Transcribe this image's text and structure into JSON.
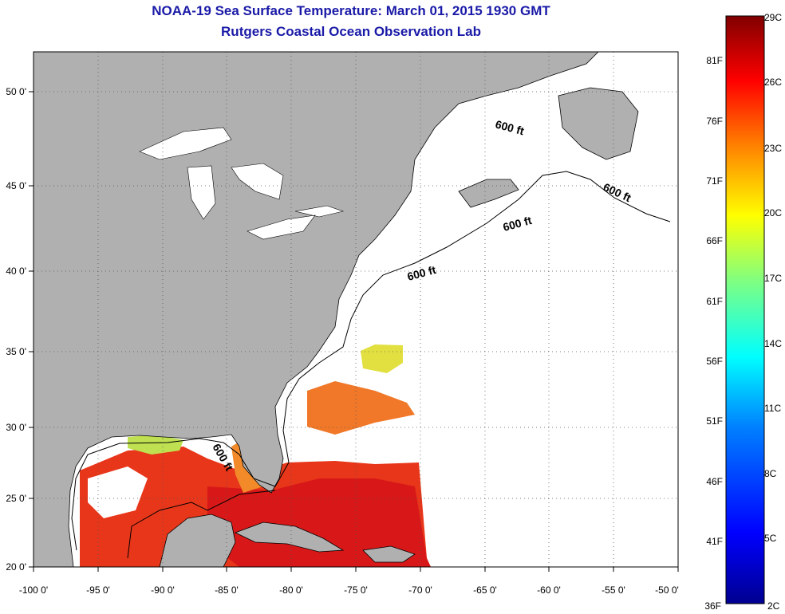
{
  "title": {
    "line1": "NOAA-19 Sea Surface Temperature:  March 01, 2015 1930 GMT",
    "line2": "Rutgers Coastal Ocean Observation Lab"
  },
  "map": {
    "lon_labels": [
      "-100 0'",
      "-95 0'",
      "-90 0'",
      "-85 0'",
      "-80 0'",
      "-75 0'",
      "-70 0'",
      "-65 0'",
      "-60 0'",
      "-55 0'",
      "-50 0'"
    ],
    "lat_labels": [
      "50 0'",
      "45 0'",
      "40 0'",
      "35 0'",
      "30 0'",
      "25 0'",
      "20 0'"
    ],
    "contour_labels": [
      "600 ft",
      "600 ft",
      "600 ft",
      "600 ft",
      "600 ft"
    ],
    "land_color": "#b0b0b0",
    "ocean_color": "#ffffff",
    "grid_style": "dotted"
  },
  "colorbar": {
    "celsius_labels": [
      "29C",
      "26C",
      "23C",
      "20C",
      "17C",
      "14C",
      "11C",
      "8C",
      "5C",
      "2C"
    ],
    "fahrenheit_labels": [
      "81F",
      "76F",
      "71F",
      "66F",
      "61F",
      "56F",
      "51F",
      "46F",
      "41F",
      "36F"
    ],
    "colors": [
      "#000090",
      "#0000ff",
      "#0080ff",
      "#00ffff",
      "#80ff80",
      "#ffff00",
      "#ff8000",
      "#ff0000",
      "#800000"
    ]
  }
}
